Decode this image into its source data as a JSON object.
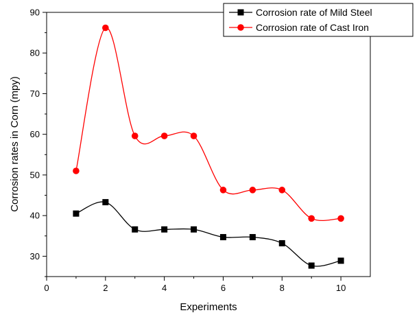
{
  "chart_data": {
    "type": "line",
    "title": "",
    "xlabel": "Experiments",
    "ylabel": "Corrosion rates in Corn (mpy)",
    "xlim": [
      0,
      11
    ],
    "ylim": [
      25,
      90
    ],
    "xticks": [
      0,
      2,
      4,
      6,
      8,
      10
    ],
    "yticks": [
      30,
      40,
      50,
      60,
      70,
      80,
      90
    ],
    "x": [
      1,
      2,
      3,
      4,
      5,
      6,
      7,
      8,
      9,
      10
    ],
    "series": [
      {
        "name": "Corrosion rate of Mild Steel",
        "marker": "square",
        "color": "#000000",
        "values": [
          40.5,
          43.3,
          36.6,
          36.6,
          36.6,
          34.7,
          34.7,
          33.2,
          27.7,
          28.9
        ]
      },
      {
        "name": "Corrosion rate of Cast Iron",
        "marker": "circle",
        "color": "#ff0000",
        "values": [
          51.0,
          86.2,
          59.6,
          59.6,
          59.6,
          46.3,
          46.3,
          46.3,
          39.3,
          39.3
        ]
      }
    ],
    "grid": false,
    "legend_position": "top-right",
    "smooth": true
  }
}
